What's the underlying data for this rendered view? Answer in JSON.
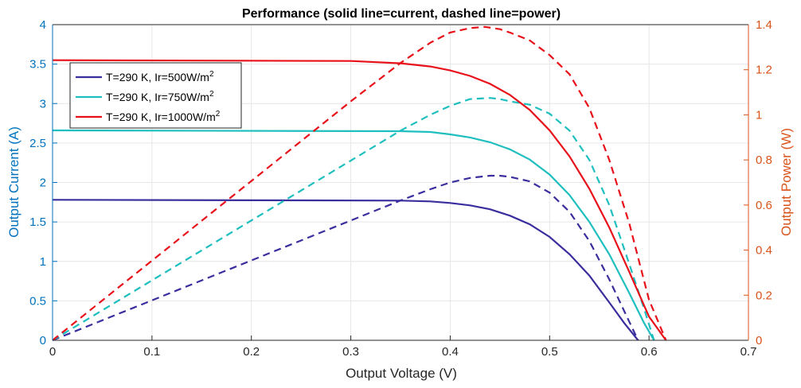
{
  "chart_data": {
    "type": "line",
    "title": "Performance (solid line=current, dashed line=power)",
    "xlabel": "Output Voltage (V)",
    "ylabel_left": "Output Current (A)",
    "ylabel_right": "Output Power (W)",
    "xlim": [
      0,
      0.7
    ],
    "ylim_left": [
      0,
      4
    ],
    "ylim_right": [
      0,
      1.4
    ],
    "x_ticks": [
      "0",
      "0.1",
      "0.2",
      "0.3",
      "0.4",
      "0.5",
      "0.6",
      "0.7"
    ],
    "y_left_ticks": [
      "0",
      "0.5",
      "1",
      "1.5",
      "2",
      "2.5",
      "3",
      "3.5",
      "4"
    ],
    "y_right_ticks": [
      "0",
      "0.2",
      "0.4",
      "0.6",
      "0.8",
      "1",
      "1.2",
      "1.4"
    ],
    "grid": true,
    "legend_position": "top-left",
    "colors": {
      "left_axis": "#0072BD",
      "right_axis": "#D95319",
      "axis_box": "#262626",
      "grid": "#e6e6e6"
    },
    "series": [
      {
        "legend_prefix": "T=290 K, Ir=500W/m",
        "legend_sup": "2",
        "color": "#3A2E9E",
        "current": {
          "x": [
            0,
            0.35,
            0.38,
            0.4,
            0.42,
            0.44,
            0.46,
            0.48,
            0.5,
            0.52,
            0.54,
            0.56,
            0.575,
            0.589
          ],
          "y": [
            1.78,
            1.77,
            1.76,
            1.74,
            1.71,
            1.66,
            1.58,
            1.47,
            1.31,
            1.09,
            0.82,
            0.48,
            0.22,
            0.0
          ]
        },
        "power": {
          "x": [
            0,
            0.35,
            0.38,
            0.4,
            0.42,
            0.44,
            0.45,
            0.46,
            0.48,
            0.5,
            0.52,
            0.54,
            0.56,
            0.575,
            0.589
          ],
          "y": [
            0,
            0.62,
            0.67,
            0.7,
            0.72,
            0.73,
            0.73,
            0.725,
            0.705,
            0.655,
            0.57,
            0.44,
            0.27,
            0.13,
            0.0
          ]
        }
      },
      {
        "legend_prefix": "T=290 K, Ir=750W/m",
        "legend_sup": "2",
        "color": "#20BFBF",
        "current": {
          "x": [
            0,
            0.35,
            0.38,
            0.4,
            0.42,
            0.44,
            0.46,
            0.48,
            0.5,
            0.52,
            0.54,
            0.56,
            0.58,
            0.595,
            0.605
          ],
          "y": [
            2.66,
            2.65,
            2.64,
            2.61,
            2.57,
            2.51,
            2.42,
            2.29,
            2.1,
            1.84,
            1.5,
            1.09,
            0.6,
            0.22,
            0.0
          ]
        },
        "power": {
          "x": [
            0,
            0.35,
            0.38,
            0.4,
            0.42,
            0.44,
            0.45,
            0.46,
            0.48,
            0.5,
            0.52,
            0.54,
            0.56,
            0.58,
            0.595,
            0.605
          ],
          "y": [
            0,
            0.93,
            1.0,
            1.04,
            1.07,
            1.075,
            1.07,
            1.06,
            1.045,
            1.005,
            0.93,
            0.8,
            0.6,
            0.34,
            0.14,
            0.0
          ]
        }
      },
      {
        "legend_prefix": "T=290 K, Ir=1000W/m",
        "legend_sup": "2",
        "color": "#E8111A",
        "current": {
          "x": [
            0,
            0.3,
            0.35,
            0.38,
            0.4,
            0.42,
            0.44,
            0.46,
            0.48,
            0.5,
            0.52,
            0.54,
            0.56,
            0.58,
            0.6,
            0.617
          ],
          "y": [
            3.55,
            3.54,
            3.51,
            3.47,
            3.42,
            3.35,
            3.25,
            3.11,
            2.92,
            2.66,
            2.33,
            1.92,
            1.43,
            0.87,
            0.3,
            0.0
          ]
        },
        "power": {
          "x": [
            0,
            0.3,
            0.35,
            0.38,
            0.4,
            0.42,
            0.435,
            0.45,
            0.46,
            0.48,
            0.5,
            0.52,
            0.54,
            0.56,
            0.58,
            0.6,
            0.617
          ],
          "y": [
            0,
            1.06,
            1.23,
            1.32,
            1.365,
            1.385,
            1.39,
            1.38,
            1.365,
            1.33,
            1.265,
            1.18,
            1.03,
            0.8,
            0.52,
            0.18,
            0.0
          ]
        }
      }
    ]
  }
}
